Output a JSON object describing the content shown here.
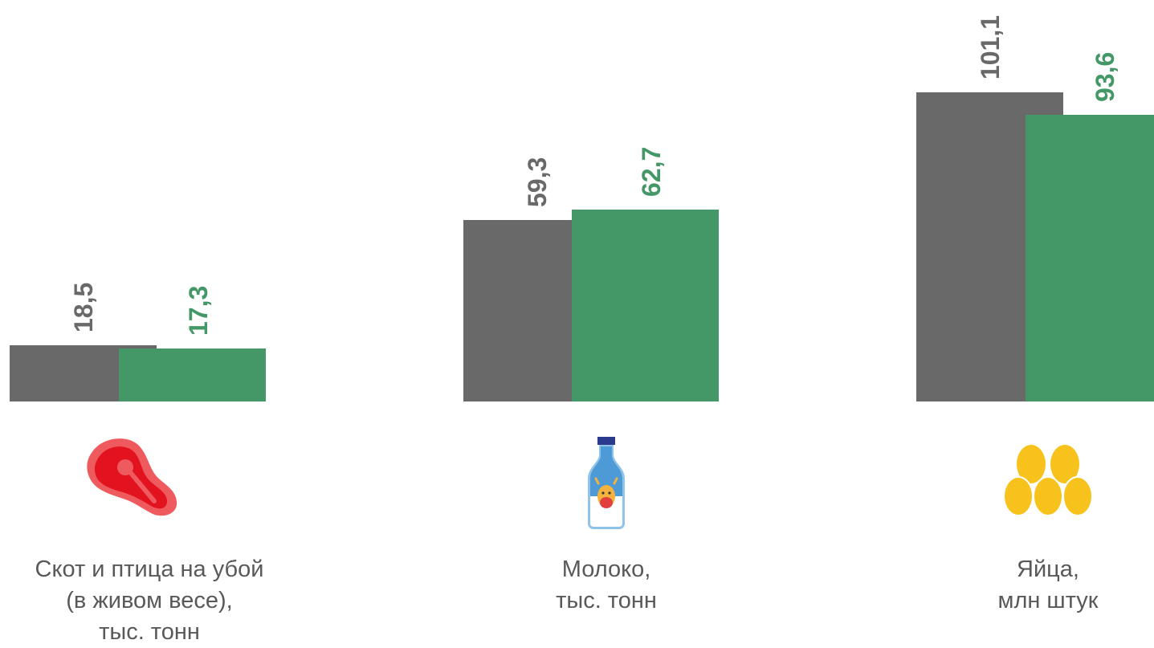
{
  "colors": {
    "previous": "#696969",
    "current": "#449766"
  },
  "icons": [
    "meat-icon",
    "milk-bottle-icon",
    "eggs-icon"
  ],
  "chart_data": {
    "type": "bar",
    "categories": [
      [
        "Скот и птица на убой",
        "(в живом весе),",
        "тыс. тонн"
      ],
      [
        "Молоко,",
        "тыс. тонн"
      ],
      [
        "Яйца,",
        "млн штук"
      ]
    ],
    "series": [
      {
        "values": [
          18.5,
          59.3,
          101.1
        ],
        "labels": [
          "18,5",
          "59,3",
          "101,1"
        ],
        "color": "#696969"
      },
      {
        "values": [
          17.3,
          62.7,
          93.6
        ],
        "labels": [
          "17,3",
          "62,7",
          "93,6"
        ],
        "color": "#449766"
      }
    ]
  }
}
